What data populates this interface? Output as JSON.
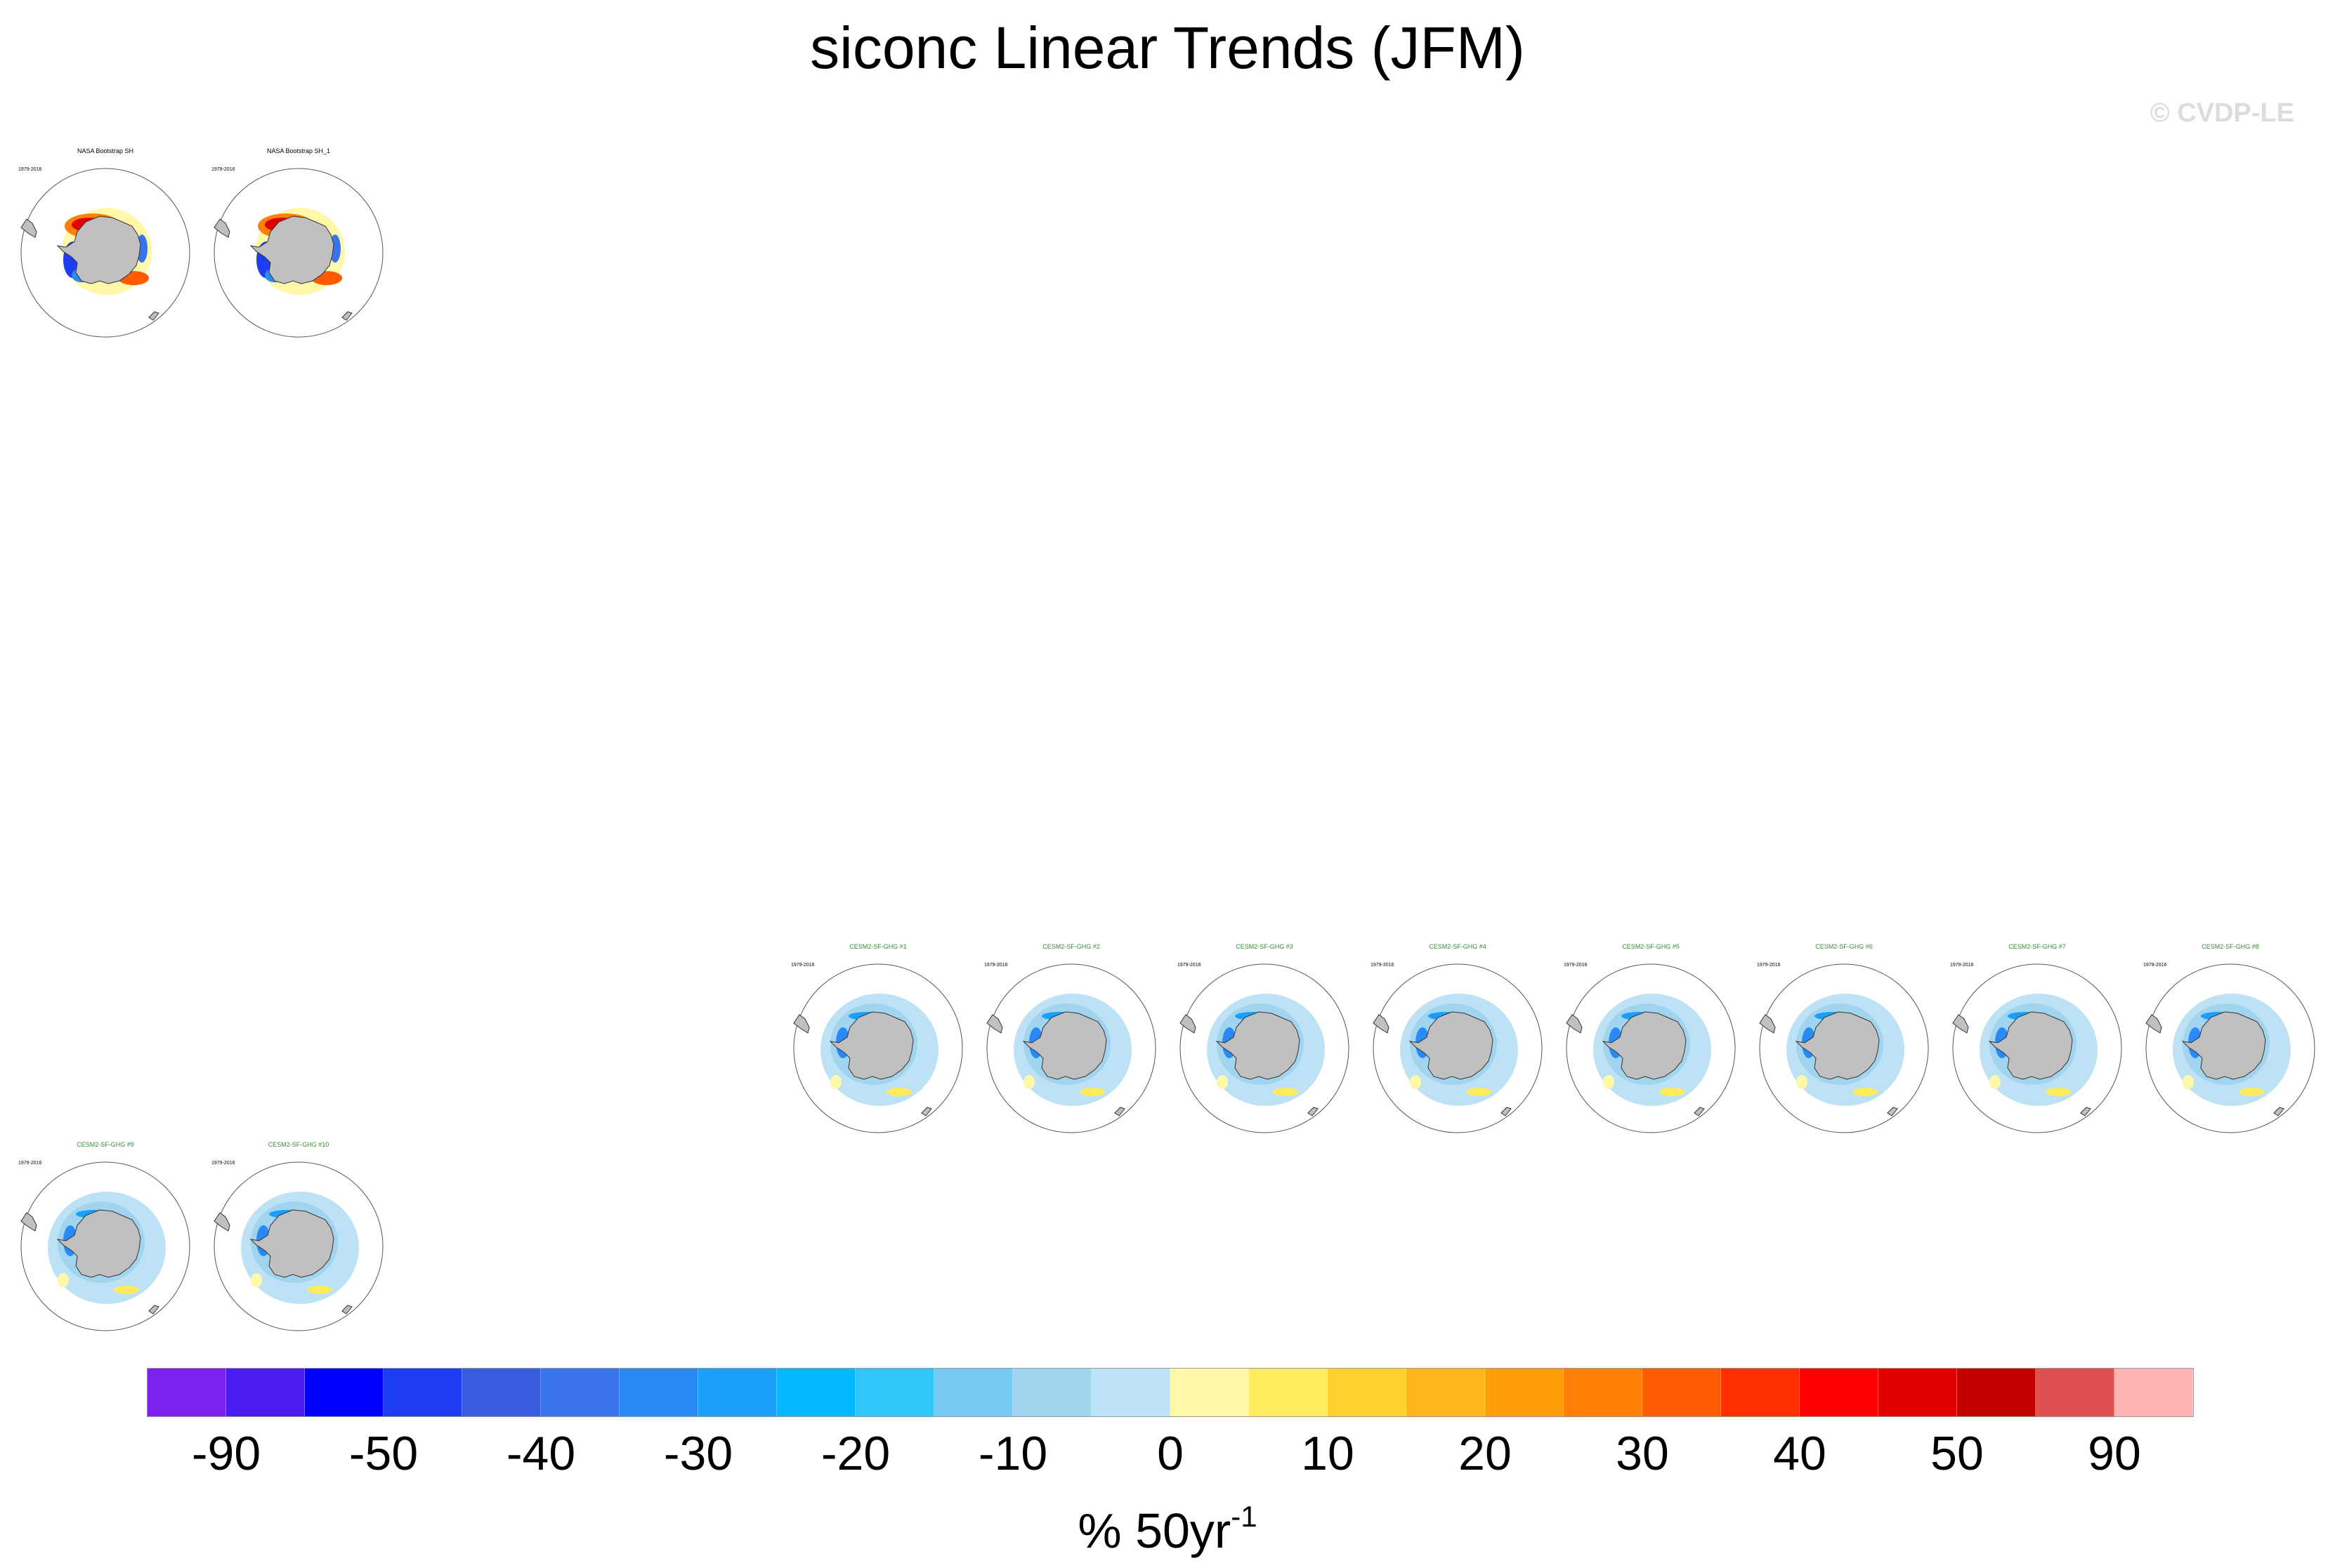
{
  "title": "siconc Linear Trends (JFM)",
  "copyright": "© CVDP-LE",
  "colorbar": {
    "tick_labels": [
      "-90",
      "-50",
      "-40",
      "-30",
      "-20",
      "-10",
      "0",
      "10",
      "20",
      "30",
      "40",
      "50",
      "90"
    ],
    "units_main": "% 50yr",
    "units_exp": "-1",
    "colors": [
      "#7b22f0",
      "#4a1cf0",
      "#0000ff",
      "#1f3df2",
      "#3a5be0",
      "#3a73ee",
      "#2a8af5",
      "#1aa0fa",
      "#05b8fd",
      "#30c6fa",
      "#78c9f1",
      "#a0d4ef",
      "#bde2f5",
      "#fff8a8",
      "#ffeb5c",
      "#ffd12d",
      "#fdb71a",
      "#ff9e08",
      "#ff7f07",
      "#ff5a00",
      "#ff2f00",
      "#ff0000",
      "#e00000",
      "#c40000",
      "#e15050",
      "#ffb2b2"
    ]
  },
  "panels": [
    {
      "title": "NASA Bootstrap SH",
      "title_color": "#000000",
      "period": "1979-2016",
      "trend": "obs"
    },
    {
      "title": "NASA Bootstrap SH_1",
      "title_color": "#000000",
      "period": "1979-2016",
      "trend": "obs"
    },
    {
      "title": "CESM2-SF-GHG #1",
      "title_color": "#3a8a3a",
      "period": "1979-2016",
      "trend": "model"
    },
    {
      "title": "CESM2-SF-GHG #2",
      "title_color": "#3a8a3a",
      "period": "1979-2016",
      "trend": "model"
    },
    {
      "title": "CESM2-SF-GHG #3",
      "title_color": "#3a8a3a",
      "period": "1979-2016",
      "trend": "model"
    },
    {
      "title": "CESM2-SF-GHG #4",
      "title_color": "#3a8a3a",
      "period": "1979-2016",
      "trend": "model"
    },
    {
      "title": "CESM2-SF-GHG #5",
      "title_color": "#3a8a3a",
      "period": "1979-2016",
      "trend": "model"
    },
    {
      "title": "CESM2-SF-GHG #6",
      "title_color": "#3a8a3a",
      "period": "1979-2016",
      "trend": "model"
    },
    {
      "title": "CESM2-SF-GHG #7",
      "title_color": "#3a8a3a",
      "period": "1979-2016",
      "trend": "model"
    },
    {
      "title": "CESM2-SF-GHG #8",
      "title_color": "#3a8a3a",
      "period": "1979-2016",
      "trend": "model"
    },
    {
      "title": "CESM2-SF-GHG #9",
      "title_color": "#3a8a3a",
      "period": "1979-2016",
      "trend": "model"
    },
    {
      "title": "CESM2-SF-GHG #10",
      "title_color": "#3a8a3a",
      "period": "1979-2016",
      "trend": "model"
    }
  ]
}
